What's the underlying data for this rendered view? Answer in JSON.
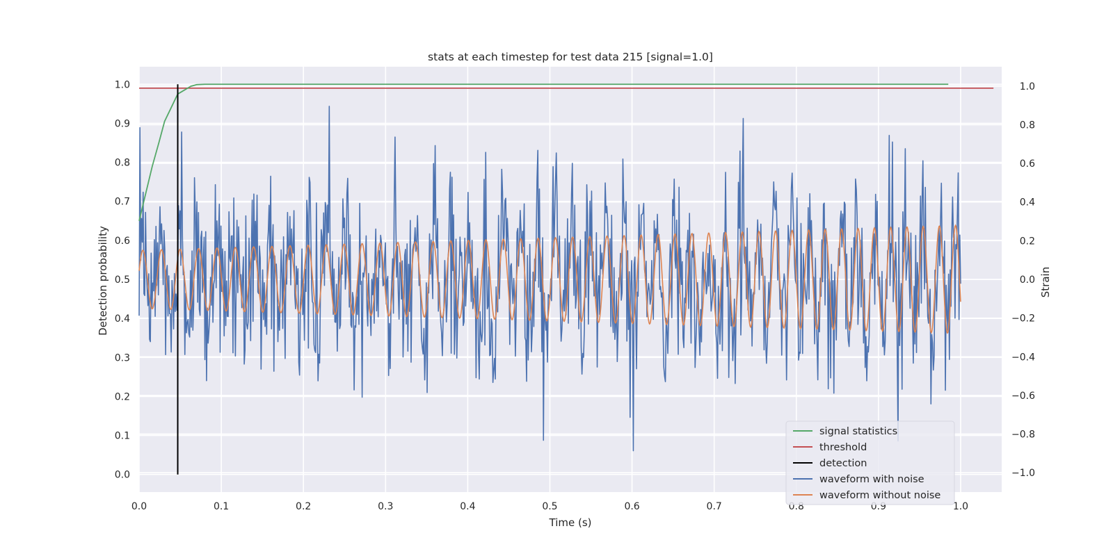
{
  "chart_data": {
    "type": "line",
    "title": "stats at each timestep for test data 215 [signal=1.0]",
    "xlabel": "Time (s)",
    "ylabel_left": "Detection probability",
    "ylabel_right": "Strain",
    "xlim": [
      0.0,
      1.05
    ],
    "ylim_left": [
      -0.045,
      1.045
    ],
    "ylim_right": [
      -1.1,
      1.1
    ],
    "x_ticks": [
      "0.0",
      "0.1",
      "0.2",
      "0.3",
      "0.4",
      "0.5",
      "0.6",
      "0.7",
      "0.8",
      "0.9",
      "1.0"
    ],
    "y_ticks_left": [
      "0.0",
      "0.1",
      "0.2",
      "0.3",
      "0.4",
      "0.5",
      "0.6",
      "0.7",
      "0.8",
      "0.9",
      "1.0"
    ],
    "y_ticks_right": [
      "−1.0",
      "−0.8",
      "−0.6",
      "−0.4",
      "−0.2",
      "0.0",
      "0.2",
      "0.4",
      "0.6",
      "0.8",
      "1.0"
    ],
    "grid": true,
    "legend_position": "bottom-right",
    "colors": {
      "signal_statistics": "#55a868",
      "threshold": "#c44e52",
      "detection": "#000000",
      "waveform_with_noise": "#4c72b0",
      "waveform_without_noise": "#dd8452",
      "plot_background": "#eaeaf2",
      "grid": "#ffffff"
    },
    "legend": [
      {
        "label": "signal statistics",
        "color": "#55a868"
      },
      {
        "label": "threshold",
        "color": "#c44e52"
      },
      {
        "label": "detection",
        "color": "#000000"
      },
      {
        "label": "waveform with noise",
        "color": "#4c72b0"
      },
      {
        "label": "waveform without noise",
        "color": "#dd8452"
      }
    ],
    "signal_statistics": {
      "axis": "left",
      "x": [
        0.0,
        0.008,
        0.016,
        0.024,
        0.031,
        0.039,
        0.047,
        0.055,
        0.063,
        0.07,
        0.08,
        0.1,
        0.2,
        0.4,
        0.6,
        0.8,
        0.985
      ],
      "y": [
        0.65,
        0.72,
        0.79,
        0.85,
        0.905,
        0.94,
        0.975,
        0.985,
        0.995,
        0.999,
        1.0,
        1.0,
        1.0,
        1.0,
        1.0,
        1.0,
        1.0
      ]
    },
    "threshold": {
      "axis": "left",
      "x": [
        0.0,
        1.04
      ],
      "y": [
        0.99,
        0.99
      ]
    },
    "detection": {
      "axis": "left",
      "x": [
        0.047,
        0.047
      ],
      "y": [
        0.0,
        1.0
      ]
    },
    "waveform_without_noise": {
      "axis": "right",
      "x_range": [
        0.0,
        1.0
      ],
      "amplitude_start": 0.15,
      "amplitude_end": 0.28,
      "cycles": 44
    },
    "waveform_with_noise": {
      "axis": "right",
      "x_range": [
        0.0,
        1.0
      ],
      "samples": 1024,
      "noise_std": 0.22,
      "approx_range": [
        -0.95,
        1.0
      ]
    }
  }
}
